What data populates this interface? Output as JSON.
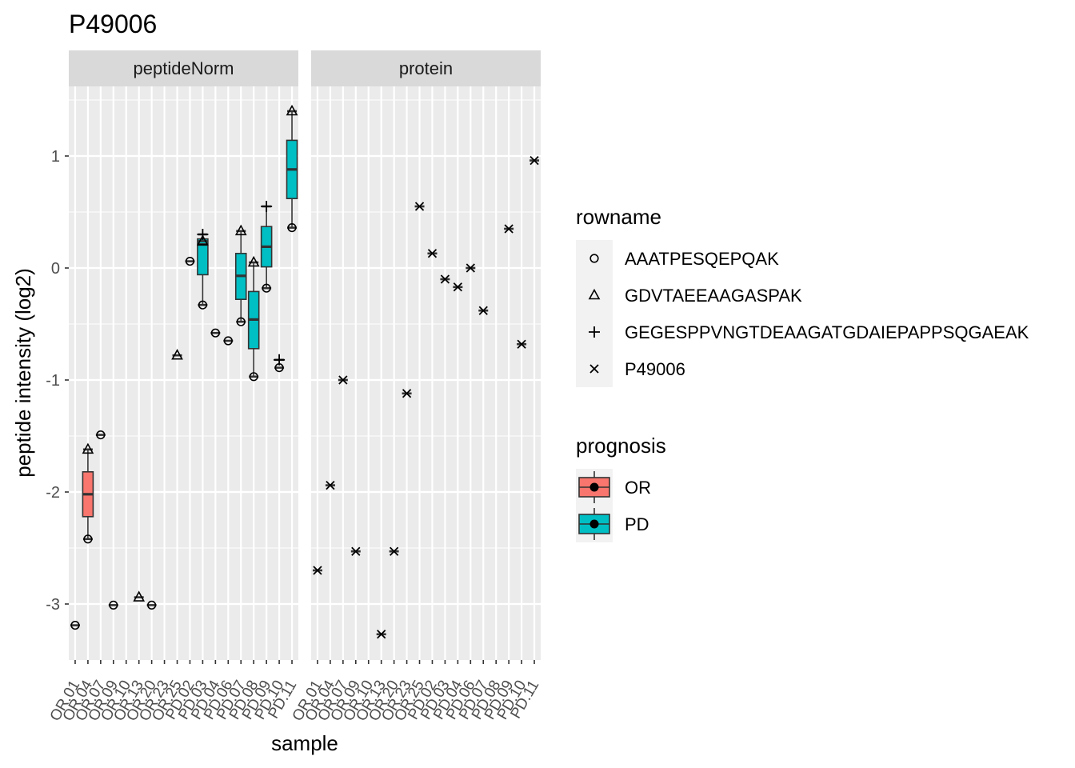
{
  "title": "P49006",
  "xlabel": "sample",
  "ylabel": "peptide intensity (log2)",
  "colors": {
    "OR": "#F8766D",
    "PD": "#00BFC4",
    "panel": "#EBEBEB",
    "strip": "#D9D9D9"
  },
  "chart_data": {
    "type": "boxplot",
    "title": "P49006",
    "xlabel": "sample",
    "ylabel": "peptide intensity (log2)",
    "y_ticks": [
      -3,
      -2,
      -1,
      0,
      1
    ],
    "y_tick_labels": [
      "-3",
      "-2",
      "-1",
      "0",
      "1"
    ],
    "ylim": [
      -3.5,
      1.55
    ],
    "grid": true,
    "legend_position": "right",
    "samples": [
      "OR.01",
      "OR.04",
      "OR.07",
      "OR.09",
      "OR.10",
      "OR.13",
      "OR.20",
      "OR.23",
      "OR.25",
      "PD.02",
      "PD.03",
      "PD.04",
      "PD.06",
      "PD.07",
      "PD.08",
      "PD.09",
      "PD.10",
      "PD.11"
    ],
    "panels": [
      {
        "name": "peptideNorm",
        "boxes": [
          {
            "sample": "OR.04",
            "group": "OR",
            "min": -2.42,
            "q1": -2.22,
            "median": -2.02,
            "q3": -1.82,
            "max": -1.62
          },
          {
            "sample": "PD.03",
            "group": "PD",
            "min": -0.33,
            "q1": -0.06,
            "median": 0.21,
            "q3": 0.26,
            "max": 0.3
          },
          {
            "sample": "PD.07",
            "group": "PD",
            "min": -0.48,
            "q1": -0.28,
            "median": -0.07,
            "q3": 0.13,
            "max": 0.33
          },
          {
            "sample": "PD.08",
            "group": "PD",
            "min": -0.97,
            "q1": -0.72,
            "median": -0.46,
            "q3": -0.21,
            "max": 0.05
          },
          {
            "sample": "PD.09",
            "group": "PD",
            "min": -0.18,
            "q1": 0.01,
            "median": 0.19,
            "q3": 0.37,
            "max": 0.55
          },
          {
            "sample": "PD.11",
            "group": "PD",
            "min": 0.36,
            "q1": 0.62,
            "median": 0.88,
            "q3": 1.14,
            "max": 1.4
          }
        ],
        "points": [
          {
            "sample": "OR.01",
            "rowname": "AAATPESQEPQAK",
            "y": -3.19
          },
          {
            "sample": "OR.04",
            "rowname": "AAATPESQEPQAK",
            "y": -2.42
          },
          {
            "sample": "OR.04",
            "rowname": "GDVTAEEAAGASPAK",
            "y": -1.62
          },
          {
            "sample": "OR.07",
            "rowname": "AAATPESQEPQAK",
            "y": -1.49
          },
          {
            "sample": "OR.09",
            "rowname": "AAATPESQEPQAK",
            "y": -3.01
          },
          {
            "sample": "OR.13",
            "rowname": "GDVTAEEAAGASPAK",
            "y": -2.94
          },
          {
            "sample": "OR.20",
            "rowname": "AAATPESQEPQAK",
            "y": -3.01
          },
          {
            "sample": "OR.25",
            "rowname": "GDVTAEEAAGASPAK",
            "y": -0.78
          },
          {
            "sample": "PD.02",
            "rowname": "AAATPESQEPQAK",
            "y": 0.06
          },
          {
            "sample": "PD.03",
            "rowname": "AAATPESQEPQAK",
            "y": -0.33
          },
          {
            "sample": "PD.03",
            "rowname": "GDVTAEEAAGASPAK",
            "y": 0.24
          },
          {
            "sample": "PD.03",
            "rowname": "GEGESPPVNGTDEAAGATGDAIEPAPPSQGAEAK",
            "y": 0.3
          },
          {
            "sample": "PD.04",
            "rowname": "AAATPESQEPQAK",
            "y": -0.58
          },
          {
            "sample": "PD.06",
            "rowname": "AAATPESQEPQAK",
            "y": -0.65
          },
          {
            "sample": "PD.07",
            "rowname": "AAATPESQEPQAK",
            "y": -0.48
          },
          {
            "sample": "PD.07",
            "rowname": "GDVTAEEAAGASPAK",
            "y": 0.33
          },
          {
            "sample": "PD.08",
            "rowname": "AAATPESQEPQAK",
            "y": -0.97
          },
          {
            "sample": "PD.08",
            "rowname": "GDVTAEEAAGASPAK",
            "y": 0.05
          },
          {
            "sample": "PD.09",
            "rowname": "AAATPESQEPQAK",
            "y": -0.18
          },
          {
            "sample": "PD.09",
            "rowname": "GEGESPPVNGTDEAAGATGDAIEPAPPSQGAEAK",
            "y": 0.55
          },
          {
            "sample": "PD.10",
            "rowname": "AAATPESQEPQAK",
            "y": -0.89
          },
          {
            "sample": "PD.10",
            "rowname": "GEGESPPVNGTDEAAGATGDAIEPAPPSQGAEAK",
            "y": -0.82
          },
          {
            "sample": "PD.11",
            "rowname": "AAATPESQEPQAK",
            "y": 0.36
          },
          {
            "sample": "PD.11",
            "rowname": "GDVTAEEAAGASPAK",
            "y": 1.4
          }
        ]
      },
      {
        "name": "protein",
        "boxes": [],
        "points": [
          {
            "sample": "OR.01",
            "rowname": "P49006",
            "y": -2.7
          },
          {
            "sample": "OR.04",
            "rowname": "P49006",
            "y": -1.94
          },
          {
            "sample": "OR.07",
            "rowname": "P49006",
            "y": -1.0
          },
          {
            "sample": "OR.09",
            "rowname": "P49006",
            "y": -2.53
          },
          {
            "sample": "OR.13",
            "rowname": "P49006",
            "y": -3.27
          },
          {
            "sample": "OR.20",
            "rowname": "P49006",
            "y": -2.53
          },
          {
            "sample": "OR.23",
            "rowname": "P49006",
            "y": -1.12
          },
          {
            "sample": "OR.25",
            "rowname": "P49006",
            "y": 0.55
          },
          {
            "sample": "PD.02",
            "rowname": "P49006",
            "y": 0.13
          },
          {
            "sample": "PD.03",
            "rowname": "P49006",
            "y": -0.1
          },
          {
            "sample": "PD.04",
            "rowname": "P49006",
            "y": -0.17
          },
          {
            "sample": "PD.06",
            "rowname": "P49006",
            "y": 0.0
          },
          {
            "sample": "PD.07",
            "rowname": "P49006",
            "y": -0.38
          },
          {
            "sample": "PD.09",
            "rowname": "P49006",
            "y": 0.35
          },
          {
            "sample": "PD.10",
            "rowname": "P49006",
            "y": -0.68
          },
          {
            "sample": "PD.11",
            "rowname": "P49006",
            "y": 0.96
          }
        ]
      }
    ]
  },
  "legend": {
    "rowname": {
      "title": "rowname",
      "items": [
        {
          "label": "AAATPESQEPQAK",
          "shape": "circle"
        },
        {
          "label": "GDVTAEEAAGASPAK",
          "shape": "triangle"
        },
        {
          "label": "GEGESPPVNGTDEAAGATGDAIEPAPPSQGAEAK",
          "shape": "plus"
        },
        {
          "label": "P49006",
          "shape": "cross"
        }
      ]
    },
    "prognosis": {
      "title": "prognosis",
      "items": [
        {
          "label": "OR",
          "color": "#F8766D"
        },
        {
          "label": "PD",
          "color": "#00BFC4"
        }
      ]
    }
  }
}
